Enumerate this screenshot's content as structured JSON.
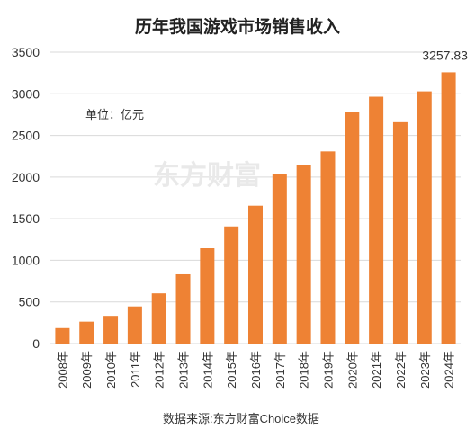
{
  "chart_data": {
    "type": "bar",
    "title": "历年我国游戏市场销售收入",
    "unit_label": "单位：亿元",
    "source": "数据来源:东方财富Choice数据",
    "watermark": "东方财富",
    "categories": [
      "2008年",
      "2009年",
      "2010年",
      "2011年",
      "2012年",
      "2013年",
      "2014年",
      "2015年",
      "2016年",
      "2017年",
      "2018年",
      "2019年",
      "2020年",
      "2021年",
      "2022年",
      "2023年",
      "2024年"
    ],
    "values": [
      186,
      263,
      333,
      446,
      603,
      832,
      1145,
      1407,
      1656,
      2036,
      2144,
      2308,
      2787,
      2965,
      2659,
      3029,
      3257.83
    ],
    "value_labels": [
      "",
      "",
      "",
      "",
      "",
      "",
      "",
      "",
      "",
      "",
      "",
      "",
      "",
      "",
      "",
      "",
      "3257.83"
    ],
    "y_ticks": [
      "0",
      "500",
      "1000",
      "1500",
      "2000",
      "2500",
      "3000",
      "3500"
    ],
    "ylim": [
      0,
      3500
    ],
    "bar_color": "#ee8234",
    "grid": true
  }
}
